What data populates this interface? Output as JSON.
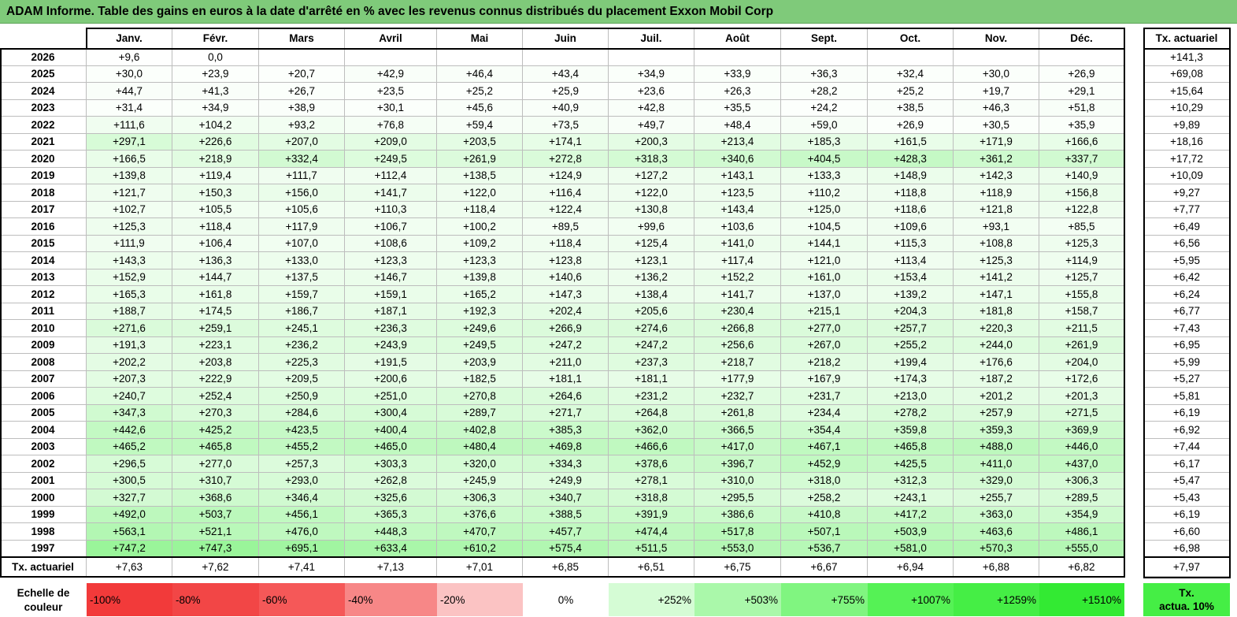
{
  "title": "ADAM Informe. Table des gains en euros à la date d'arrêté en % avec les revenus connus distribués du placement Exxon Mobil Corp",
  "chart_data": {
    "type": "table",
    "months": [
      "Janv.",
      "Févr.",
      "Mars",
      "Avril",
      "Mai",
      "Juin",
      "Juil.",
      "Août",
      "Sept.",
      "Oct.",
      "Nov.",
      "Déc."
    ],
    "annual_header": "Tx. actuariel",
    "rows": [
      {
        "year": "2026",
        "values": [
          "+9,6",
          "0,0",
          "",
          "",
          "",
          "",
          "",
          "",
          "",
          "",
          "",
          ""
        ],
        "annual": "+141,3"
      },
      {
        "year": "2025",
        "values": [
          "+30,0",
          "+23,9",
          "+20,7",
          "+42,9",
          "+46,4",
          "+43,4",
          "+34,9",
          "+33,9",
          "+36,3",
          "+32,4",
          "+30,0",
          "+26,9"
        ],
        "annual": "+69,08"
      },
      {
        "year": "2024",
        "values": [
          "+44,7",
          "+41,3",
          "+26,7",
          "+23,5",
          "+25,2",
          "+25,9",
          "+23,6",
          "+26,3",
          "+28,2",
          "+25,2",
          "+19,7",
          "+29,1"
        ],
        "annual": "+15,64"
      },
      {
        "year": "2023",
        "values": [
          "+31,4",
          "+34,9",
          "+38,9",
          "+30,1",
          "+45,6",
          "+40,9",
          "+42,8",
          "+35,5",
          "+24,2",
          "+38,5",
          "+46,3",
          "+51,8"
        ],
        "annual": "+10,29"
      },
      {
        "year": "2022",
        "values": [
          "+111,6",
          "+104,2",
          "+93,2",
          "+76,8",
          "+59,4",
          "+73,5",
          "+49,7",
          "+48,4",
          "+59,0",
          "+26,9",
          "+30,5",
          "+35,9"
        ],
        "annual": "+9,89"
      },
      {
        "year": "2021",
        "values": [
          "+297,1",
          "+226,6",
          "+207,0",
          "+209,0",
          "+203,5",
          "+174,1",
          "+200,3",
          "+213,4",
          "+185,3",
          "+161,5",
          "+171,9",
          "+166,6"
        ],
        "annual": "+18,16"
      },
      {
        "year": "2020",
        "values": [
          "+166,5",
          "+218,9",
          "+332,4",
          "+249,5",
          "+261,9",
          "+272,8",
          "+318,3",
          "+340,6",
          "+404,5",
          "+428,3",
          "+361,2",
          "+337,7"
        ],
        "annual": "+17,72"
      },
      {
        "year": "2019",
        "values": [
          "+139,8",
          "+119,4",
          "+111,7",
          "+112,4",
          "+138,5",
          "+124,9",
          "+127,2",
          "+143,1",
          "+133,3",
          "+148,9",
          "+142,3",
          "+140,9"
        ],
        "annual": "+10,09"
      },
      {
        "year": "2018",
        "values": [
          "+121,7",
          "+150,3",
          "+156,0",
          "+141,7",
          "+122,0",
          "+116,4",
          "+122,0",
          "+123,5",
          "+110,2",
          "+118,8",
          "+118,9",
          "+156,8"
        ],
        "annual": "+9,27"
      },
      {
        "year": "2017",
        "values": [
          "+102,7",
          "+105,5",
          "+105,6",
          "+110,3",
          "+118,4",
          "+122,4",
          "+130,8",
          "+143,4",
          "+125,0",
          "+118,6",
          "+121,8",
          "+122,8"
        ],
        "annual": "+7,77"
      },
      {
        "year": "2016",
        "values": [
          "+125,3",
          "+118,4",
          "+117,9",
          "+106,7",
          "+100,2",
          "+89,5",
          "+99,6",
          "+103,6",
          "+104,5",
          "+109,6",
          "+93,1",
          "+85,5"
        ],
        "annual": "+6,49"
      },
      {
        "year": "2015",
        "values": [
          "+111,9",
          "+106,4",
          "+107,0",
          "+108,6",
          "+109,2",
          "+118,4",
          "+125,4",
          "+141,0",
          "+144,1",
          "+115,3",
          "+108,8",
          "+125,3"
        ],
        "annual": "+6,56"
      },
      {
        "year": "2014",
        "values": [
          "+143,3",
          "+136,3",
          "+133,0",
          "+123,3",
          "+123,3",
          "+123,8",
          "+123,1",
          "+117,4",
          "+121,0",
          "+113,4",
          "+125,3",
          "+114,9"
        ],
        "annual": "+5,95"
      },
      {
        "year": "2013",
        "values": [
          "+152,9",
          "+144,7",
          "+137,5",
          "+146,7",
          "+139,8",
          "+140,6",
          "+136,2",
          "+152,2",
          "+161,0",
          "+153,4",
          "+141,2",
          "+125,7"
        ],
        "annual": "+6,42"
      },
      {
        "year": "2012",
        "values": [
          "+165,3",
          "+161,8",
          "+159,7",
          "+159,1",
          "+165,2",
          "+147,3",
          "+138,4",
          "+141,7",
          "+137,0",
          "+139,2",
          "+147,1",
          "+155,8"
        ],
        "annual": "+6,24"
      },
      {
        "year": "2011",
        "values": [
          "+188,7",
          "+174,5",
          "+186,7",
          "+187,1",
          "+192,3",
          "+202,4",
          "+205,6",
          "+230,4",
          "+215,1",
          "+204,3",
          "+181,8",
          "+158,7"
        ],
        "annual": "+6,77"
      },
      {
        "year": "2010",
        "values": [
          "+271,6",
          "+259,1",
          "+245,1",
          "+236,3",
          "+249,6",
          "+266,9",
          "+274,6",
          "+266,8",
          "+277,0",
          "+257,7",
          "+220,3",
          "+211,5"
        ],
        "annual": "+7,43"
      },
      {
        "year": "2009",
        "values": [
          "+191,3",
          "+223,1",
          "+236,2",
          "+243,9",
          "+249,5",
          "+247,2",
          "+247,2",
          "+256,6",
          "+267,0",
          "+255,2",
          "+244,0",
          "+261,9"
        ],
        "annual": "+6,95"
      },
      {
        "year": "2008",
        "values": [
          "+202,2",
          "+203,8",
          "+225,3",
          "+191,5",
          "+203,9",
          "+211,0",
          "+237,3",
          "+218,7",
          "+218,2",
          "+199,4",
          "+176,6",
          "+204,0"
        ],
        "annual": "+5,99"
      },
      {
        "year": "2007",
        "values": [
          "+207,3",
          "+222,9",
          "+209,5",
          "+200,6",
          "+182,5",
          "+181,1",
          "+181,1",
          "+177,9",
          "+167,9",
          "+174,3",
          "+187,2",
          "+172,6"
        ],
        "annual": "+5,27"
      },
      {
        "year": "2006",
        "values": [
          "+240,7",
          "+252,4",
          "+250,9",
          "+251,0",
          "+270,8",
          "+264,6",
          "+231,2",
          "+232,7",
          "+231,7",
          "+213,0",
          "+201,2",
          "+201,3"
        ],
        "annual": "+5,81"
      },
      {
        "year": "2005",
        "values": [
          "+347,3",
          "+270,3",
          "+284,6",
          "+300,4",
          "+289,7",
          "+271,7",
          "+264,8",
          "+261,8",
          "+234,4",
          "+278,2",
          "+257,9",
          "+271,5"
        ],
        "annual": "+6,19"
      },
      {
        "year": "2004",
        "values": [
          "+442,6",
          "+425,2",
          "+423,5",
          "+400,4",
          "+402,8",
          "+385,3",
          "+362,0",
          "+366,5",
          "+354,4",
          "+359,8",
          "+359,3",
          "+369,9"
        ],
        "annual": "+6,92"
      },
      {
        "year": "2003",
        "values": [
          "+465,2",
          "+465,8",
          "+455,2",
          "+465,0",
          "+480,4",
          "+469,8",
          "+466,6",
          "+417,0",
          "+467,1",
          "+465,8",
          "+488,0",
          "+446,0"
        ],
        "annual": "+7,44"
      },
      {
        "year": "2002",
        "values": [
          "+296,5",
          "+277,0",
          "+257,3",
          "+303,3",
          "+320,0",
          "+334,3",
          "+378,6",
          "+396,7",
          "+452,9",
          "+425,5",
          "+411,0",
          "+437,0"
        ],
        "annual": "+6,17"
      },
      {
        "year": "2001",
        "values": [
          "+300,5",
          "+310,7",
          "+293,0",
          "+262,8",
          "+245,9",
          "+249,9",
          "+278,1",
          "+310,0",
          "+318,0",
          "+312,3",
          "+329,0",
          "+306,3"
        ],
        "annual": "+5,47"
      },
      {
        "year": "2000",
        "values": [
          "+327,7",
          "+368,6",
          "+346,4",
          "+325,6",
          "+306,3",
          "+340,7",
          "+318,8",
          "+295,5",
          "+258,2",
          "+243,1",
          "+255,7",
          "+289,5"
        ],
        "annual": "+5,43"
      },
      {
        "year": "1999",
        "values": [
          "+492,0",
          "+503,7",
          "+456,1",
          "+365,3",
          "+376,6",
          "+388,5",
          "+391,9",
          "+386,6",
          "+410,8",
          "+417,2",
          "+363,0",
          "+354,9"
        ],
        "annual": "+6,19"
      },
      {
        "year": "1998",
        "values": [
          "+563,1",
          "+521,1",
          "+476,0",
          "+448,3",
          "+470,7",
          "+457,7",
          "+474,4",
          "+517,8",
          "+507,1",
          "+503,9",
          "+463,6",
          "+486,1"
        ],
        "annual": "+6,60"
      },
      {
        "year": "1997",
        "values": [
          "+747,2",
          "+747,3",
          "+695,1",
          "+633,4",
          "+610,2",
          "+575,4",
          "+511,5",
          "+553,0",
          "+536,7",
          "+581,0",
          "+570,3",
          "+555,0"
        ],
        "annual": "+6,98"
      }
    ],
    "footer": {
      "label": "Tx. actuariel",
      "values": [
        "+7,63",
        "+7,62",
        "+7,41",
        "+7,13",
        "+7,01",
        "+6,85",
        "+6,51",
        "+6,75",
        "+6,67",
        "+6,94",
        "+6,88",
        "+6,82"
      ],
      "total": "+7,97"
    },
    "color_scale": {
      "label_line1": "Echelle de",
      "label_line2": "couleur",
      "steps": [
        {
          "label": "-100%",
          "color": "#f23a3a",
          "align": "left"
        },
        {
          "label": "-80%",
          "color": "#f24646",
          "align": "left"
        },
        {
          "label": "-60%",
          "color": "#f55858",
          "align": "left"
        },
        {
          "label": "-40%",
          "color": "#f78787",
          "align": "left"
        },
        {
          "label": "-20%",
          "color": "#fbc3c3",
          "align": "left"
        },
        {
          "label": "0%",
          "color": "#ffffff",
          "align": "center"
        },
        {
          "label": "+252%",
          "color": "#d5fcd5",
          "align": "right"
        },
        {
          "label": "+503%",
          "color": "#aaf8aa",
          "align": "right"
        },
        {
          "label": "+755%",
          "color": "#80f580",
          "align": "right"
        },
        {
          "label": "+1007%",
          "color": "#55f255",
          "align": "right"
        },
        {
          "label": "+1259%",
          "color": "#45ee45",
          "align": "right"
        },
        {
          "label": "+1510%",
          "color": "#33ea33",
          "align": "right"
        }
      ],
      "legend_line1": "Tx.",
      "legend_line2": "actua. 10%",
      "max_value": 1510
    }
  }
}
